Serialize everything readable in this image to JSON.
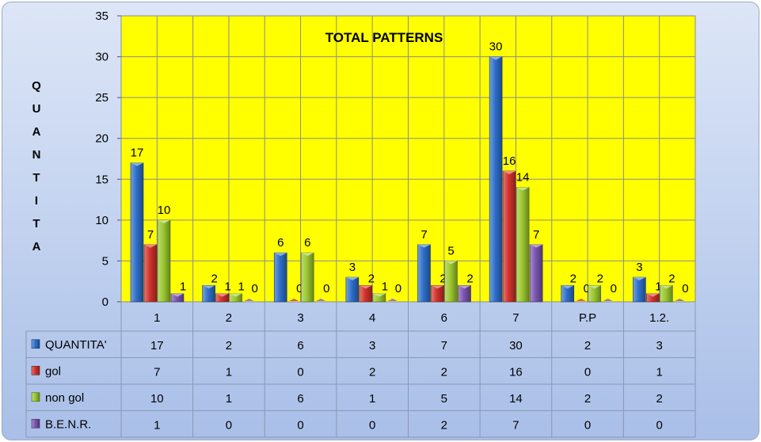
{
  "chart_data": {
    "type": "bar",
    "title": "TOTAL PATTERNS",
    "ylabel": "QUANTITA",
    "xlabel": "",
    "ylim": [
      0,
      35
    ],
    "yticks": [
      0,
      5,
      10,
      15,
      20,
      25,
      30,
      35
    ],
    "grid": true,
    "legend_placement": "data-table-left",
    "plot_background": "#ffff00",
    "categories": [
      "1",
      "2",
      "3",
      "4",
      "6",
      "7",
      "P.P",
      "1.2."
    ],
    "series": [
      {
        "name": "QUANTITA'",
        "color": "#2e6fc9",
        "values": [
          17,
          2,
          6,
          3,
          7,
          30,
          2,
          3
        ]
      },
      {
        "name": "gol",
        "color": "#d2322d",
        "values": [
          7,
          1,
          0,
          2,
          2,
          16,
          0,
          1
        ]
      },
      {
        "name": "non gol",
        "color": "#9bc82f",
        "values": [
          10,
          1,
          6,
          1,
          5,
          14,
          2,
          2
        ]
      },
      {
        "name": "B.E.N.R.",
        "color": "#7a55b0",
        "values": [
          1,
          0,
          0,
          0,
          2,
          7,
          0,
          0
        ]
      }
    ]
  }
}
